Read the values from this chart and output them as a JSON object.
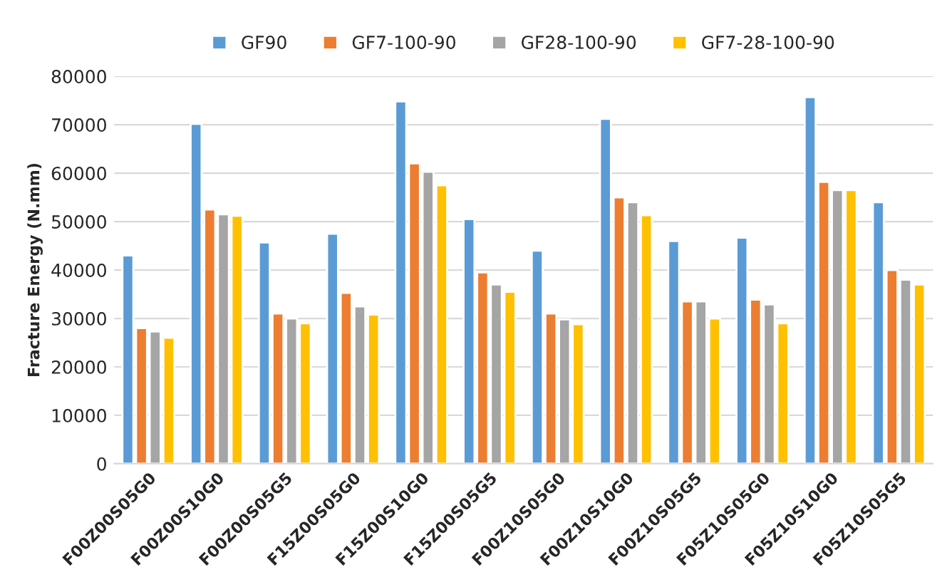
{
  "chart_data": {
    "type": "bar",
    "ylabel": "Fracture Energy (N.mm)",
    "categories": [
      "F00Z00S05G0",
      "F00Z00S10G0",
      "F00Z00S05G5",
      "F15Z00S05G0",
      "F15Z00S10G0",
      "F15Z00S05G5",
      "F00Z10S05G0",
      "F00Z10S10G0",
      "F00Z10S05G5",
      "F05Z10S05G0",
      "F05Z10S10G0",
      "F05Z10S05G5"
    ],
    "series": [
      {
        "name": "GF90",
        "color": "#5b9bd5",
        "values": [
          43000,
          70200,
          45700,
          47500,
          74800,
          50500,
          44000,
          71200,
          46000,
          46700,
          75700,
          54000
        ]
      },
      {
        "name": "GF7-100-90",
        "color": "#ed7d31",
        "values": [
          28000,
          52500,
          31000,
          35300,
          62000,
          39500,
          31000,
          55000,
          33500,
          33900,
          58200,
          40000
        ]
      },
      {
        "name": "GF28-100-90",
        "color": "#a5a5a5",
        "values": [
          27300,
          51500,
          30000,
          32500,
          60300,
          37000,
          29800,
          54000,
          33500,
          32900,
          56500,
          38000
        ]
      },
      {
        "name": "GF7-28-100-90",
        "color": "#ffc000",
        "values": [
          26000,
          51200,
          29000,
          30800,
          57500,
          35500,
          28800,
          51300,
          30000,
          29000,
          56500,
          37000
        ]
      }
    ],
    "ylim": [
      0,
      80000
    ],
    "yticks": [
      0,
      10000,
      20000,
      30000,
      40000,
      50000,
      60000,
      70000,
      80000
    ],
    "grid": "y",
    "legend": "top"
  }
}
